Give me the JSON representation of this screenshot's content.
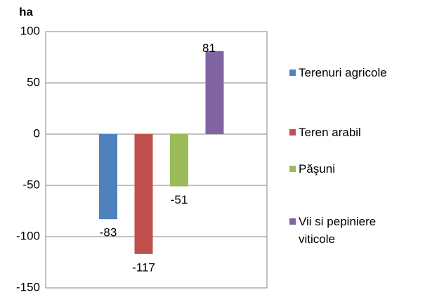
{
  "chart_data": {
    "type": "bar",
    "y_label": "ha",
    "categories": [
      null
    ],
    "series": [
      {
        "name": "Terenuri agricole",
        "color": "#4f81bd",
        "values": [
          -83
        ]
      },
      {
        "name": "Teren arabil",
        "color": "#c0504d",
        "values": [
          -117
        ]
      },
      {
        "name": "Păşuni",
        "color": "#9bbb59",
        "values": [
          -51
        ]
      },
      {
        "name": "Vii si pepiniere viticole",
        "color": "#8064a2",
        "values": [
          81
        ]
      }
    ],
    "ylim": [
      -150,
      100
    ],
    "yticks": [
      -150,
      -100,
      -50,
      0,
      50,
      100
    ],
    "grid": true,
    "legend": "right"
  }
}
